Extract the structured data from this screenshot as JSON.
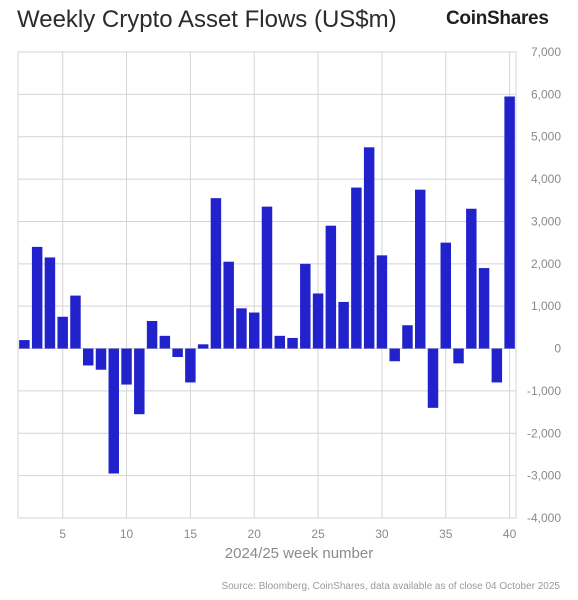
{
  "title": "Weekly Crypto Asset Flows (US$m)",
  "logo_text": "CoinShares",
  "source_text": "Source: Bloomberg, CoinShares, data available as of close 04 October 2025",
  "colors": {
    "bar": "#2222cc",
    "grid": "#d4d4d4",
    "text": "#8a8a8a"
  },
  "chart_data": {
    "type": "bar",
    "title": "Weekly Crypto Asset Flows (US$m)",
    "xlabel": "2024/25 week number",
    "ylabel": "",
    "ylim": [
      -4000,
      7000
    ],
    "xlim": [
      1.5,
      40.5
    ],
    "y_ticks": [
      -4000,
      -3000,
      -2000,
      -1000,
      0,
      1000,
      2000,
      3000,
      4000,
      5000,
      6000,
      7000
    ],
    "y_tick_labels": [
      "-4,000",
      "-3,000",
      "-2,000",
      "-1,000",
      "0",
      "1,000",
      "2,000",
      "3,000",
      "4,000",
      "5,000",
      "6,000",
      "7,000"
    ],
    "x_ticks": [
      5,
      10,
      15,
      20,
      25,
      30,
      35,
      40
    ],
    "x_tick_labels": [
      "5",
      "10",
      "15",
      "20",
      "25",
      "30",
      "35",
      "40"
    ],
    "y_axis_position": "right",
    "grid": true,
    "categories": [
      2,
      3,
      4,
      5,
      6,
      7,
      8,
      9,
      10,
      11,
      12,
      13,
      14,
      15,
      16,
      17,
      18,
      19,
      20,
      21,
      22,
      23,
      24,
      25,
      26,
      27,
      28,
      29,
      30,
      31,
      32,
      33,
      34,
      35,
      36,
      37,
      38,
      39,
      40
    ],
    "values": [
      200,
      2400,
      2150,
      750,
      1250,
      -400,
      -500,
      -2950,
      -850,
      -1550,
      650,
      300,
      -200,
      -800,
      100,
      3550,
      2050,
      950,
      850,
      3350,
      300,
      250,
      2000,
      1300,
      2900,
      1100,
      3800,
      4750,
      2200,
      -300,
      550,
      3750,
      -1400,
      2500,
      -350,
      3300,
      1900,
      -800,
      5950
    ]
  }
}
